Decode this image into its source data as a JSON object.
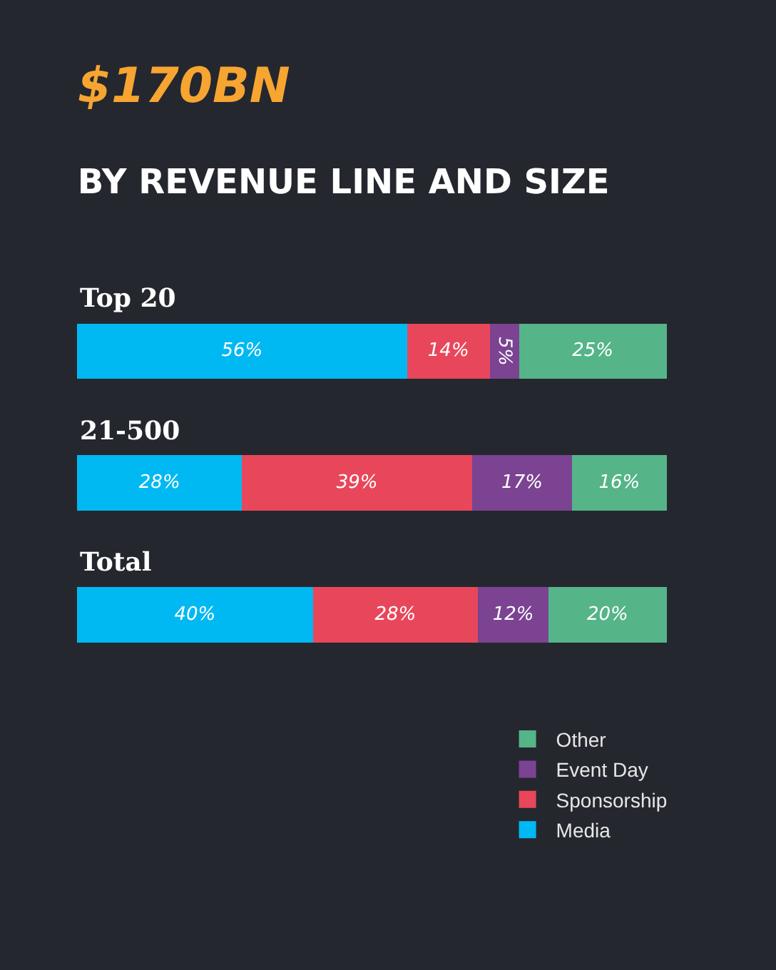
{
  "chart_data": {
    "type": "bar",
    "title": "$170BN",
    "subtitle": "BY REVENUE LINE AND SIZE",
    "categories": [
      "Top 20",
      "21-500",
      "Total"
    ],
    "orientation": "horizontal",
    "stacked": true,
    "legend": "bottom right",
    "series": [
      {
        "name": "Media",
        "color": "#00b9f2",
        "values": [
          56,
          28,
          40
        ],
        "value_labels": [
          "56%",
          "28%",
          "40%"
        ]
      },
      {
        "name": "Sponsorship",
        "color": "#e8475b",
        "values": [
          14,
          39,
          28
        ],
        "value_labels": [
          "14%",
          "39%",
          "28%"
        ]
      },
      {
        "name": "Event Day",
        "color": "#7b4392",
        "values": [
          5,
          17,
          12
        ],
        "value_labels": [
          "5%",
          "17%",
          "12%"
        ]
      },
      {
        "name": "Other",
        "color": "#55b488",
        "values": [
          25,
          16,
          20
        ],
        "value_labels": [
          "25%",
          "16%",
          "20%"
        ]
      }
    ]
  }
}
